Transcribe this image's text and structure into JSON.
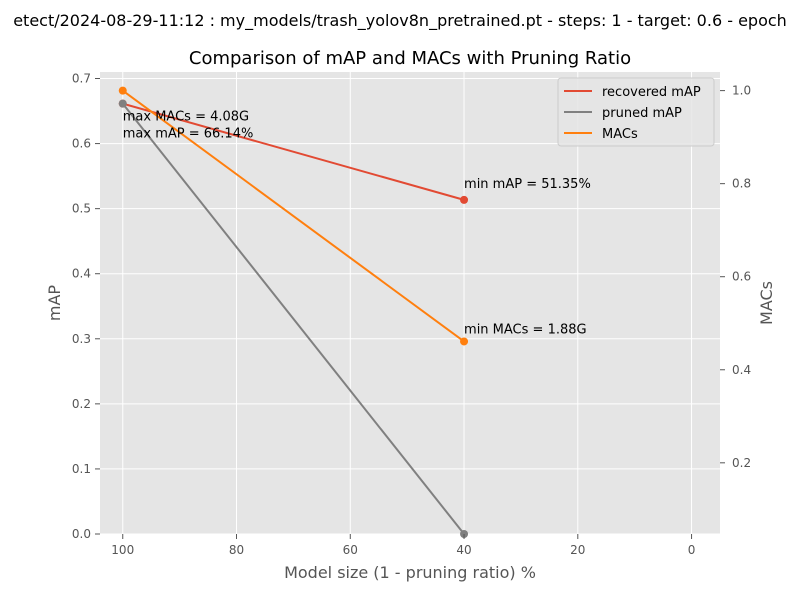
{
  "chart_data": {
    "type": "line",
    "suptitle": "etect/2024-08-29-11:12 : my_models/trash_yolov8n_pretrained.pt - steps: 1 - target: 0.6 - epoch",
    "title": "Comparison of mAP and MACs with Pruning Ratio",
    "xlabel": "Model size (1 - pruning ratio) %",
    "ylabel_left": "mAP",
    "ylabel_right": "MACs",
    "xlim": [
      104,
      -5
    ],
    "ylim_left": [
      0,
      0.71
    ],
    "ylim_right": [
      0.047,
      1.04
    ],
    "x_ticks": [
      100,
      80,
      60,
      40,
      20,
      0
    ],
    "y_ticks_left": [
      0.0,
      0.1,
      0.2,
      0.3,
      0.4,
      0.5,
      0.6,
      0.7
    ],
    "y_ticks_right": [
      0.2,
      0.4,
      0.6,
      0.8,
      1.0
    ],
    "y_tick_labels_left": [
      "0.0",
      "0.1",
      "0.2",
      "0.3",
      "0.4",
      "0.5",
      "0.6",
      "0.7"
    ],
    "y_tick_labels_right": [
      "0.2",
      "0.4",
      "0.6",
      "0.8",
      "1.0"
    ],
    "grid": true,
    "legend_position": "top-right",
    "series": [
      {
        "name": "recovered mAP",
        "axis": "left",
        "color": "#E24A33",
        "x": [
          100,
          40
        ],
        "y": [
          0.6614,
          0.5135
        ]
      },
      {
        "name": "pruned mAP",
        "axis": "left",
        "color": "#808080",
        "x": [
          100,
          40
        ],
        "y": [
          0.6614,
          0.0
        ]
      },
      {
        "name": "MACs",
        "axis": "right",
        "color": "#FF7F0E",
        "x": [
          100,
          40
        ],
        "y": [
          1.0,
          0.4608
        ]
      }
    ],
    "annotations": [
      {
        "text": "max MACs = 4.08G",
        "x": 100,
        "y": 0.6358,
        "axis": "left"
      },
      {
        "text": "max mAP = 66.14%",
        "x": 100,
        "y": 0.6097,
        "axis": "left"
      },
      {
        "text": "min mAP = 51.35%",
        "x": 40,
        "y": 0.5318,
        "axis": "left"
      },
      {
        "text": "min MACs = 1.88G",
        "x": 40,
        "y": 0.3079,
        "axis": "left"
      }
    ]
  }
}
